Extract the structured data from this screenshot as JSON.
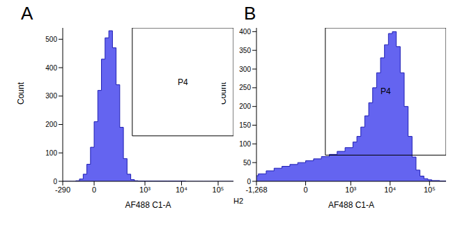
{
  "chart_data": [
    {
      "type": "histogram",
      "title": "A",
      "x_label": "AF488 C1-A",
      "y_label": "Count",
      "color": "#6464f0",
      "bins": [
        -290,
        -252,
        -197,
        -153,
        -117,
        -87,
        -61,
        -39,
        -19,
        0,
        19,
        39,
        61,
        87,
        117,
        153,
        197,
        252,
        320,
        406,
        513,
        647,
        1027,
        1632,
        4100,
        12956,
        41000,
        129650,
        262144
      ],
      "counts": [
        0,
        0,
        0,
        0,
        2,
        8,
        25,
        60,
        120,
        210,
        320,
        430,
        505,
        530,
        470,
        340,
        190,
        80,
        25,
        6,
        2,
        1,
        1,
        1,
        1,
        0,
        0,
        0
      ],
      "xlim": [
        -290,
        262144
      ],
      "xticks": [
        -290,
        0,
        {
          "value": 1000,
          "label": "10³"
        },
        {
          "value": 10000,
          "label": "10⁴"
        },
        {
          "value": 100000,
          "label": "10⁵"
        }
      ],
      "ylim": [
        0,
        540
      ],
      "yticks": [
        0,
        100,
        200,
        300,
        400,
        500
      ],
      "gate": {
        "name": "P4",
        "x_min": 448,
        "y_min": 160
      }
    },
    {
      "type": "histogram",
      "title": "B",
      "x_label": "AF488 C1-A",
      "y_label": "Count",
      "color": "#6464f0",
      "bins": [
        -1268,
        -1136,
        -713,
        -443,
        -269,
        -152,
        -69,
        0,
        69,
        152,
        269,
        443,
        713,
        1136,
        1433,
        1806,
        2274,
        2865,
        3608,
        4543,
        5719,
        7200,
        9065,
        11410,
        14365,
        18080,
        22768,
        28660,
        36086,
        45430,
        57190,
        72000,
        90650,
        114100,
        180800,
        262144
      ],
      "counts": [
        15,
        20,
        28,
        35,
        40,
        45,
        50,
        55,
        60,
        66,
        72,
        80,
        90,
        105,
        120,
        145,
        175,
        210,
        250,
        290,
        330,
        365,
        395,
        400,
        360,
        290,
        200,
        120,
        65,
        30,
        14,
        7,
        4,
        2,
        1
      ],
      "xlim": [
        -1268,
        262144
      ],
      "xticks": [
        {
          "value": -1268,
          "label": "-1,268"
        },
        0,
        {
          "value": 1000,
          "label": "10³"
        },
        {
          "value": 10000,
          "label": "10⁴"
        },
        {
          "value": 100000,
          "label": "10⁵"
        }
      ],
      "ylim": [
        0,
        410
      ],
      "yticks": [
        0,
        50,
        100,
        150,
        200,
        250,
        300,
        350,
        400
      ],
      "gate": {
        "name": "P4",
        "x_min": 205,
        "y_min": 70
      },
      "annotations": [
        "H2"
      ]
    }
  ]
}
